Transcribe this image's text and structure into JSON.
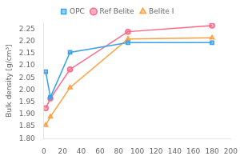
{
  "chart_data": {
    "type": "line",
    "y_label": "Bulk density [g/cm³]",
    "series": [
      {
        "name": "OPC",
        "marker": "square",
        "x": [
          2,
          7,
          28,
          90,
          180
        ],
        "values": [
          2.075,
          1.97,
          2.155,
          2.195,
          2.195
        ]
      },
      {
        "name": "Ref Belite",
        "marker": "circle",
        "x": [
          2,
          7,
          28,
          90,
          180
        ],
        "values": [
          1.925,
          1.965,
          2.085,
          2.24,
          2.265
        ]
      },
      {
        "name": "Belite I",
        "marker": "triangle",
        "x": [
          2,
          7,
          28,
          90,
          180
        ],
        "values": [
          1.855,
          1.89,
          2.01,
          2.21,
          2.215
        ]
      }
    ],
    "xlim": [
      0,
      200
    ],
    "xticks": [
      0,
      20,
      40,
      60,
      80,
      100,
      120,
      140,
      160,
      180,
      200
    ],
    "ylim": [
      1.8,
      2.275
    ],
    "yticks": [
      {
        "value": 1.8,
        "label": "1.80"
      },
      1.85,
      {
        "value": 1.9,
        "label": "1.90"
      },
      1.95,
      {
        "value": 2.0,
        "label": "2.00"
      },
      2.05,
      {
        "value": 2.1,
        "label": "2.10"
      },
      2.15,
      {
        "value": 2.2,
        "label": "2.20"
      },
      2.25
    ],
    "grid": false,
    "legend": "top"
  }
}
